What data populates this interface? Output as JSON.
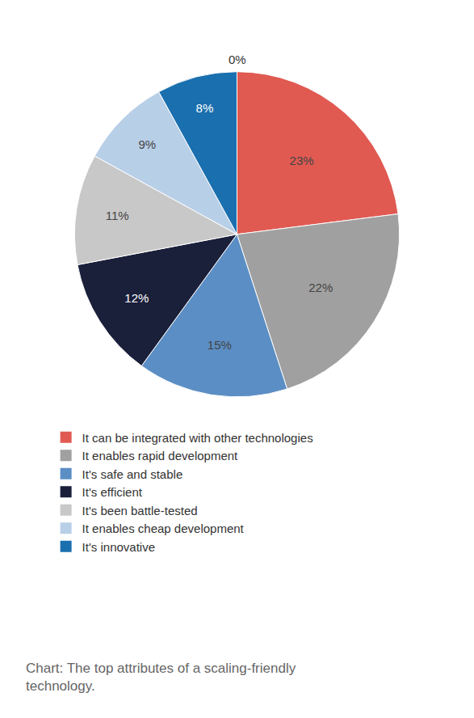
{
  "chart_data": {
    "type": "pie",
    "categories": [
      null,
      "It can be integrated with other technologies",
      "It enables rapid development",
      "It's safe and stable",
      "It's efficient",
      "It's been battle-tested",
      "It enables cheap development",
      "It's innovative"
    ],
    "values": [
      0,
      23,
      22,
      15,
      12,
      11,
      9,
      8
    ],
    "value_labels": [
      "0%",
      "23%",
      "22%",
      "15%",
      "12%",
      "11%",
      "9%",
      "8%"
    ],
    "colors": [
      "#ffffff",
      "#e05a52",
      "#a0a0a0",
      "#5b8ec4",
      "#1a1f3a",
      "#c8c8c8",
      "#b8cfe8",
      "#1a6faf"
    ],
    "data_labels": true,
    "legend": "bottom",
    "annotations": [
      "Chart: The top attributes of a scaling-friendly\ntechnology."
    ]
  }
}
